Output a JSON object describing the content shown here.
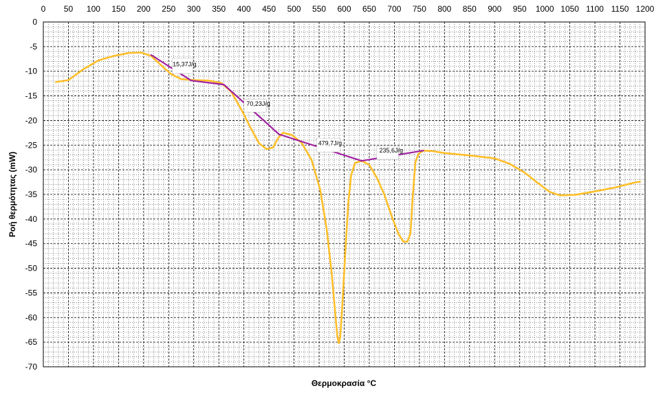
{
  "chart_data": {
    "type": "line",
    "title": "",
    "xlabel": "Θερμοκρασία °C",
    "ylabel": "Ροή θερμότητας (mW)",
    "xlim": [
      0,
      1200
    ],
    "ylim": [
      -70,
      0
    ],
    "x_ticks": [
      0,
      50,
      100,
      150,
      200,
      250,
      300,
      350,
      400,
      450,
      500,
      550,
      600,
      650,
      700,
      750,
      800,
      850,
      900,
      950,
      1000,
      1050,
      1100,
      1150,
      1200
    ],
    "y_ticks": [
      0,
      -5,
      -10,
      -15,
      -20,
      -25,
      -30,
      -35,
      -40,
      -45,
      -50,
      -55,
      -60,
      -65,
      -70
    ],
    "grid": true,
    "legend": "none",
    "colors": {
      "curve": "#FFBE28",
      "baseline": "#A020A0",
      "plot_bg": "#ffffff",
      "grid": "#000000"
    },
    "series": [
      {
        "points": [
          [
            25,
            -12.2
          ],
          [
            50,
            -11.8
          ],
          [
            80,
            -9.6
          ],
          [
            110,
            -7.8
          ],
          [
            140,
            -6.9
          ],
          [
            170,
            -6.3
          ],
          [
            195,
            -6.2
          ],
          [
            215,
            -6.9
          ],
          [
            235,
            -8.8
          ],
          [
            255,
            -10.6
          ],
          [
            275,
            -11.6
          ],
          [
            300,
            -11.8
          ],
          [
            330,
            -11.9
          ],
          [
            355,
            -12.4
          ],
          [
            375,
            -14.2
          ],
          [
            395,
            -17.8
          ],
          [
            415,
            -21.8
          ],
          [
            430,
            -24.6
          ],
          [
            445,
            -25.8
          ],
          [
            458,
            -25.5
          ],
          [
            468,
            -23.6
          ],
          [
            478,
            -22.5
          ],
          [
            495,
            -22.9
          ],
          [
            515,
            -24.5
          ],
          [
            535,
            -28
          ],
          [
            552,
            -34
          ],
          [
            565,
            -42
          ],
          [
            575,
            -51
          ],
          [
            582,
            -59
          ],
          [
            586,
            -63.5
          ],
          [
            589,
            -65.2
          ],
          [
            592,
            -64
          ],
          [
            596,
            -58
          ],
          [
            602,
            -47
          ],
          [
            608,
            -37
          ],
          [
            614,
            -31
          ],
          [
            622,
            -28.6
          ],
          [
            635,
            -28.2
          ],
          [
            650,
            -29
          ],
          [
            665,
            -31.6
          ],
          [
            680,
            -35
          ],
          [
            695,
            -39.5
          ],
          [
            708,
            -43
          ],
          [
            718,
            -44.6
          ],
          [
            726,
            -44.6
          ],
          [
            732,
            -43
          ],
          [
            737,
            -35
          ],
          [
            742,
            -28.5
          ],
          [
            748,
            -26.8
          ],
          [
            758,
            -26.1
          ],
          [
            775,
            -26.2
          ],
          [
            800,
            -26.6
          ],
          [
            850,
            -27.1
          ],
          [
            900,
            -27.7
          ],
          [
            930,
            -28.8
          ],
          [
            960,
            -30.6
          ],
          [
            985,
            -32.6
          ],
          [
            1010,
            -34.5
          ],
          [
            1030,
            -35.2
          ],
          [
            1060,
            -35.1
          ],
          [
            1100,
            -34.4
          ],
          [
            1140,
            -33.6
          ],
          [
            1175,
            -32.7
          ],
          [
            1190,
            -32.4
          ]
        ]
      },
      {
        "points": [
          [
            215,
            -6.7
          ],
          [
            295,
            -11.9
          ],
          [
            360,
            -12.7
          ],
          [
            470,
            -22.8
          ],
          [
            635,
            -28.2
          ],
          [
            758,
            -26.1
          ]
        ]
      }
    ],
    "annotations": [
      {
        "text": "15,37J/g",
        "x": 258,
        "y": -9,
        "bx1": 257,
        "by1": -7.4,
        "bx2": 298,
        "by2": -10.5
      },
      {
        "text": "70,23J/g",
        "x": 405,
        "y": -17,
        "bx1": 400,
        "by1": -15.7,
        "bx2": 445,
        "by2": -18.3
      },
      {
        "text": "479,7J/g",
        "x": 548,
        "y": -25,
        "bx1": 545,
        "by1": -23.6,
        "bx2": 592,
        "by2": -26.4
      },
      {
        "text": "235,6J/g",
        "x": 670,
        "y": -26.5,
        "bx1": 665,
        "by1": -25.2,
        "bx2": 708,
        "by2": -27.9
      }
    ]
  }
}
